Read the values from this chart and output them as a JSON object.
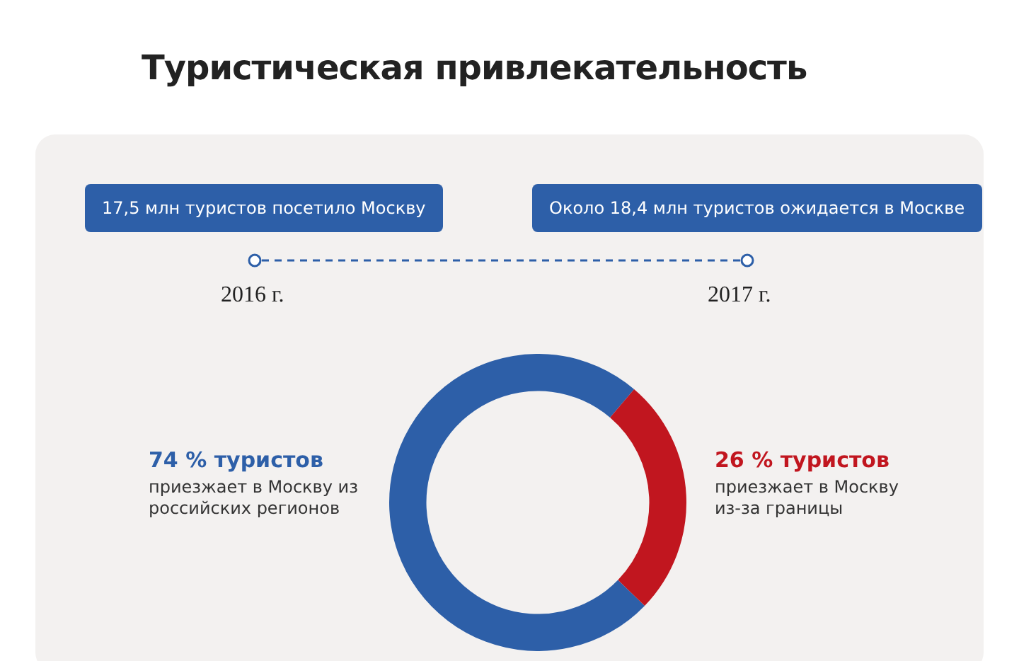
{
  "chart_data": {
    "type": "donut",
    "title": "Туристическая привлекательность",
    "categories": [
      "приезжает в Москву из российских регионов",
      "приезжает в Москву из-за границы"
    ],
    "values": [
      74,
      26
    ],
    "value_labels": [
      "74 % туристов",
      "26 % туристов"
    ],
    "colors": [
      "#2d5fa8",
      "#c1161f"
    ],
    "legend": false,
    "annotations": [
      "17,5 млн туристов посетило Москву",
      "Около 18,4 млн туристов ожидается в Москве",
      "2016 г.",
      "2017 г."
    ]
  }
}
